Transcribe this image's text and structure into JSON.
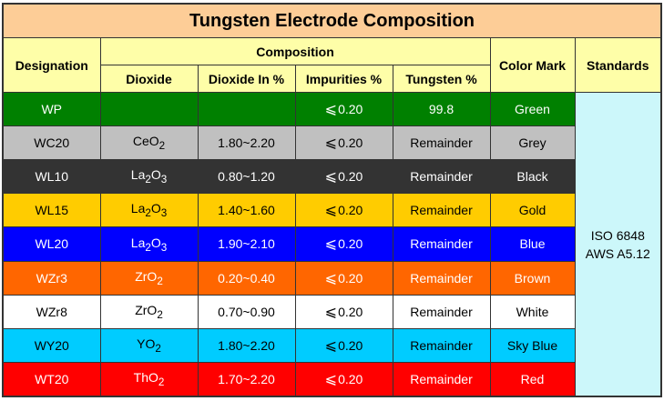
{
  "title": "Tungsten Electrode Composition",
  "headers": {
    "designation": "Designation",
    "composition": "Composition",
    "dioxide": "Dioxide",
    "dioxide_pct": "Dioxide In %",
    "impurities": "Impurities %",
    "tungsten": "Tungsten %",
    "color_mark": "Color Mark",
    "standards": "Standards"
  },
  "standards": {
    "line1": "ISO 6848",
    "line2": "AWS A5.12"
  },
  "colors": {
    "title_bg": "#fdcd97",
    "header_bg": "#fefea8",
    "standards_bg": "#ccf7fa"
  },
  "rows": [
    {
      "designation": "WP",
      "dioxide_base": "",
      "dioxide_sub": "",
      "dioxide_pct": "",
      "impurities": "0.20",
      "tungsten": "99.8",
      "color": "Green",
      "bg": "#008000",
      "fg": "#ffffff"
    },
    {
      "designation": "WC20",
      "dioxide_base": "CeO",
      "dioxide_sub": "2",
      "dioxide_pct": "1.80~2.20",
      "impurities": "0.20",
      "tungsten": "Remainder",
      "color": "Grey",
      "bg": "#c0c0c0",
      "fg": "#000000"
    },
    {
      "designation": "WL10",
      "dioxide_base": "La",
      "dioxide_sub": "2",
      "dioxide_tail": "O",
      "dioxide_sub2": "3",
      "dioxide_pct": "0.80~1.20",
      "impurities": "0.20",
      "tungsten": "Remainder",
      "color": "Black",
      "bg": "#333333",
      "fg": "#ffffff"
    },
    {
      "designation": "WL15",
      "dioxide_base": "La",
      "dioxide_sub": "2",
      "dioxide_tail": "O",
      "dioxide_sub2": "3",
      "dioxide_pct": "1.40~1.60",
      "impurities": "0.20",
      "tungsten": "Remainder",
      "color": "Gold",
      "bg": "#ffcc00",
      "fg": "#000000"
    },
    {
      "designation": "WL20",
      "dioxide_base": "La",
      "dioxide_sub": "2",
      "dioxide_tail": "O",
      "dioxide_sub2": "3",
      "dioxide_pct": "1.90~2.10",
      "impurities": "0.20",
      "tungsten": "Remainder",
      "color": "Blue",
      "bg": "#0000ff",
      "fg": "#ffffff"
    },
    {
      "designation": "WZr3",
      "dioxide_base": "ZrO",
      "dioxide_sub": "2",
      "dioxide_pct": "0.20~0.40",
      "impurities": "0.20",
      "tungsten": "Remainder",
      "color": "Brown",
      "bg": "#ff6600",
      "fg": "#ffffff"
    },
    {
      "designation": "WZr8",
      "dioxide_base": "ZrO",
      "dioxide_sub": "2",
      "dioxide_pct": "0.70~0.90",
      "impurities": "0.20",
      "tungsten": "Remainder",
      "color": "White",
      "bg": "#ffffff",
      "fg": "#000000"
    },
    {
      "designation": "WY20",
      "dioxide_base": "YO",
      "dioxide_sub": "2",
      "dioxide_pct": "1.80~2.20",
      "impurities": "0.20",
      "tungsten": "Remainder",
      "color": "Sky Blue",
      "bg": "#00ccff",
      "fg": "#000000"
    },
    {
      "designation": "WT20",
      "dioxide_base": "ThO",
      "dioxide_sub": "2",
      "dioxide_pct": "1.70~2.20",
      "impurities": "0.20",
      "tungsten": "Remainder",
      "color": "Red",
      "bg": "#ff0000",
      "fg": "#ffffff"
    }
  ]
}
